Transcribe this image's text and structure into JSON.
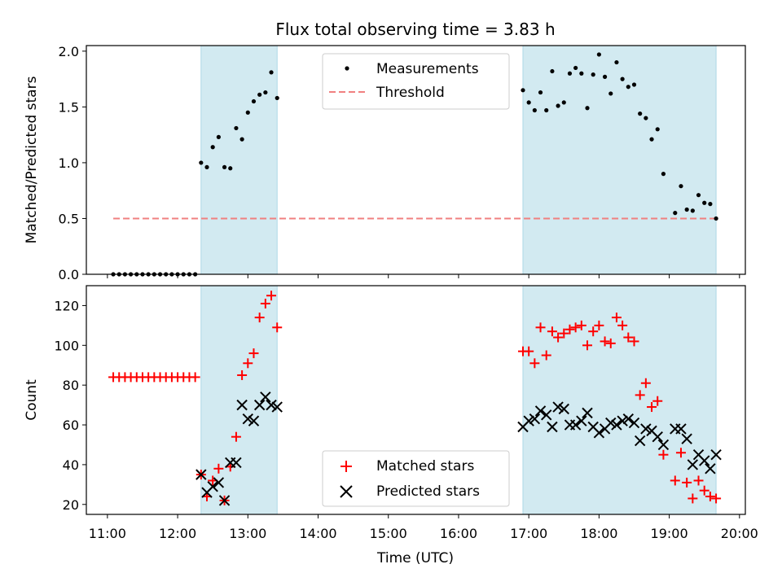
{
  "figure": {
    "title": "Flux total observing time = 3.83 h",
    "xlabel": "Time (UTC)",
    "xticks": [
      "11:00",
      "12:00",
      "13:00",
      "14:00",
      "15:00",
      "16:00",
      "17:00",
      "18:00",
      "19:00",
      "20:00"
    ]
  },
  "colors": {
    "shade": "#add8e6",
    "threshold": "#f08080",
    "measurement": "#000000",
    "matched": "#ff0000",
    "predicted": "#000000"
  },
  "chart_data": [
    {
      "type": "scatter",
      "ylabel": "Matched/Predicted stars",
      "xlim": [
        "10:42",
        "20:05"
      ],
      "ylim": [
        0,
        2.05
      ],
      "yticks": [
        "0.0",
        "0.5",
        "1.0",
        "1.5",
        "2.0"
      ],
      "legend_position": "top-center",
      "observing_windows": [
        [
          "12:20",
          "13:25"
        ],
        [
          "16:55",
          "19:40"
        ]
      ],
      "threshold": {
        "name": "Threshold",
        "value": 0.5,
        "x": [
          "11:05",
          "19:40"
        ]
      },
      "series": [
        {
          "name": "Measurements",
          "marker": "dot",
          "points": [
            [
              "11:05",
              0.0
            ],
            [
              "11:10",
              0.0
            ],
            [
              "11:15",
              0.0
            ],
            [
              "11:20",
              0.0
            ],
            [
              "11:25",
              0.0
            ],
            [
              "11:30",
              0.0
            ],
            [
              "11:35",
              0.0
            ],
            [
              "11:40",
              0.0
            ],
            [
              "11:45",
              0.0
            ],
            [
              "11:50",
              0.0
            ],
            [
              "11:55",
              0.0
            ],
            [
              "12:00",
              0.0
            ],
            [
              "12:05",
              0.0
            ],
            [
              "12:10",
              0.0
            ],
            [
              "12:15",
              0.0
            ],
            [
              "12:20",
              1.0
            ],
            [
              "12:25",
              0.96
            ],
            [
              "12:30",
              1.14
            ],
            [
              "12:35",
              1.23
            ],
            [
              "12:40",
              0.96
            ],
            [
              "12:45",
              0.95
            ],
            [
              "12:50",
              1.31
            ],
            [
              "12:55",
              1.21
            ],
            [
              "13:00",
              1.45
            ],
            [
              "13:05",
              1.55
            ],
            [
              "13:10",
              1.61
            ],
            [
              "13:15",
              1.63
            ],
            [
              "13:20",
              1.81
            ],
            [
              "13:25",
              1.58
            ],
            [
              "16:55",
              1.65
            ],
            [
              "17:00",
              1.54
            ],
            [
              "17:05",
              1.47
            ],
            [
              "17:10",
              1.63
            ],
            [
              "17:15",
              1.47
            ],
            [
              "17:20",
              1.82
            ],
            [
              "17:25",
              1.51
            ],
            [
              "17:30",
              1.54
            ],
            [
              "17:35",
              1.8
            ],
            [
              "17:40",
              1.85
            ],
            [
              "17:45",
              1.8
            ],
            [
              "17:50",
              1.49
            ],
            [
              "17:55",
              1.79
            ],
            [
              "18:00",
              1.97
            ],
            [
              "18:05",
              1.77
            ],
            [
              "18:10",
              1.62
            ],
            [
              "18:15",
              1.9
            ],
            [
              "18:20",
              1.75
            ],
            [
              "18:25",
              1.68
            ],
            [
              "18:30",
              1.7
            ],
            [
              "18:35",
              1.44
            ],
            [
              "18:40",
              1.4
            ],
            [
              "18:45",
              1.21
            ],
            [
              "18:50",
              1.3
            ],
            [
              "18:55",
              0.9
            ],
            [
              "19:05",
              0.55
            ],
            [
              "19:10",
              0.79
            ],
            [
              "19:15",
              0.58
            ],
            [
              "19:20",
              0.57
            ],
            [
              "19:25",
              0.71
            ],
            [
              "19:30",
              0.64
            ],
            [
              "19:35",
              0.63
            ],
            [
              "19:40",
              0.5
            ]
          ]
        }
      ]
    },
    {
      "type": "scatter",
      "ylabel": "Count",
      "xlim": [
        "10:42",
        "20:05"
      ],
      "ylim": [
        15,
        130
      ],
      "yticks": [
        "20",
        "40",
        "60",
        "80",
        "100",
        "120"
      ],
      "legend_position": "bottom-center",
      "observing_windows": [
        [
          "12:20",
          "13:25"
        ],
        [
          "16:55",
          "19:40"
        ]
      ],
      "series": [
        {
          "name": "Matched stars",
          "marker": "plus",
          "points": [
            [
              "11:05",
              84
            ],
            [
              "11:10",
              84
            ],
            [
              "11:15",
              84
            ],
            [
              "11:20",
              84
            ],
            [
              "11:25",
              84
            ],
            [
              "11:30",
              84
            ],
            [
              "11:35",
              84
            ],
            [
              "11:40",
              84
            ],
            [
              "11:45",
              84
            ],
            [
              "11:50",
              84
            ],
            [
              "11:55",
              84
            ],
            [
              "12:00",
              84
            ],
            [
              "12:05",
              84
            ],
            [
              "12:10",
              84
            ],
            [
              "12:15",
              84
            ],
            [
              "12:20",
              35
            ],
            [
              "12:25",
              24
            ],
            [
              "12:30",
              32
            ],
            [
              "12:35",
              38
            ],
            [
              "12:40",
              22
            ],
            [
              "12:45",
              39
            ],
            [
              "12:50",
              54
            ],
            [
              "12:55",
              85
            ],
            [
              "13:00",
              91
            ],
            [
              "13:05",
              96
            ],
            [
              "13:10",
              114
            ],
            [
              "13:15",
              121
            ],
            [
              "13:20",
              125
            ],
            [
              "13:25",
              109
            ],
            [
              "16:55",
              97
            ],
            [
              "17:00",
              97
            ],
            [
              "17:05",
              91
            ],
            [
              "17:10",
              109
            ],
            [
              "17:15",
              95
            ],
            [
              "17:20",
              107
            ],
            [
              "17:25",
              104
            ],
            [
              "17:30",
              106
            ],
            [
              "17:35",
              108
            ],
            [
              "17:40",
              109
            ],
            [
              "17:45",
              110
            ],
            [
              "17:50",
              100
            ],
            [
              "17:55",
              107
            ],
            [
              "18:00",
              110
            ],
            [
              "18:05",
              102
            ],
            [
              "18:10",
              101
            ],
            [
              "18:15",
              114
            ],
            [
              "18:20",
              110
            ],
            [
              "18:25",
              104
            ],
            [
              "18:30",
              102
            ],
            [
              "18:35",
              75
            ],
            [
              "18:40",
              81
            ],
            [
              "18:45",
              69
            ],
            [
              "18:50",
              72
            ],
            [
              "18:55",
              45
            ],
            [
              "19:05",
              32
            ],
            [
              "19:10",
              46
            ],
            [
              "19:15",
              31
            ],
            [
              "19:20",
              23
            ],
            [
              "19:25",
              32
            ],
            [
              "19:30",
              27
            ],
            [
              "19:35",
              24
            ],
            [
              "19:40",
              23
            ]
          ]
        },
        {
          "name": "Predicted stars",
          "marker": "x",
          "points": [
            [
              "12:20",
              35
            ],
            [
              "12:25",
              26
            ],
            [
              "12:30",
              29
            ],
            [
              "12:35",
              31
            ],
            [
              "12:40",
              22
            ],
            [
              "12:45",
              41
            ],
            [
              "12:50",
              41
            ],
            [
              "12:55",
              70
            ],
            [
              "13:00",
              63
            ],
            [
              "13:05",
              62
            ],
            [
              "13:10",
              70
            ],
            [
              "13:15",
              74
            ],
            [
              "13:20",
              70
            ],
            [
              "13:25",
              69
            ],
            [
              "16:55",
              59
            ],
            [
              "17:00",
              62
            ],
            [
              "17:05",
              63
            ],
            [
              "17:10",
              67
            ],
            [
              "17:15",
              65
            ],
            [
              "17:20",
              59
            ],
            [
              "17:25",
              69
            ],
            [
              "17:30",
              68
            ],
            [
              "17:35",
              60
            ],
            [
              "17:40",
              60
            ],
            [
              "17:45",
              62
            ],
            [
              "17:50",
              66
            ],
            [
              "17:55",
              59
            ],
            [
              "18:00",
              56
            ],
            [
              "18:05",
              58
            ],
            [
              "18:10",
              61
            ],
            [
              "18:15",
              60
            ],
            [
              "18:20",
              62
            ],
            [
              "18:25",
              63
            ],
            [
              "18:30",
              61
            ],
            [
              "18:35",
              52
            ],
            [
              "18:40",
              58
            ],
            [
              "18:45",
              57
            ],
            [
              "18:50",
              54
            ],
            [
              "18:55",
              50
            ],
            [
              "19:05",
              58
            ],
            [
              "19:10",
              58
            ],
            [
              "19:15",
              53
            ],
            [
              "19:20",
              40
            ],
            [
              "19:25",
              45
            ],
            [
              "19:30",
              42
            ],
            [
              "19:35",
              38
            ],
            [
              "19:40",
              45
            ]
          ]
        }
      ]
    }
  ]
}
